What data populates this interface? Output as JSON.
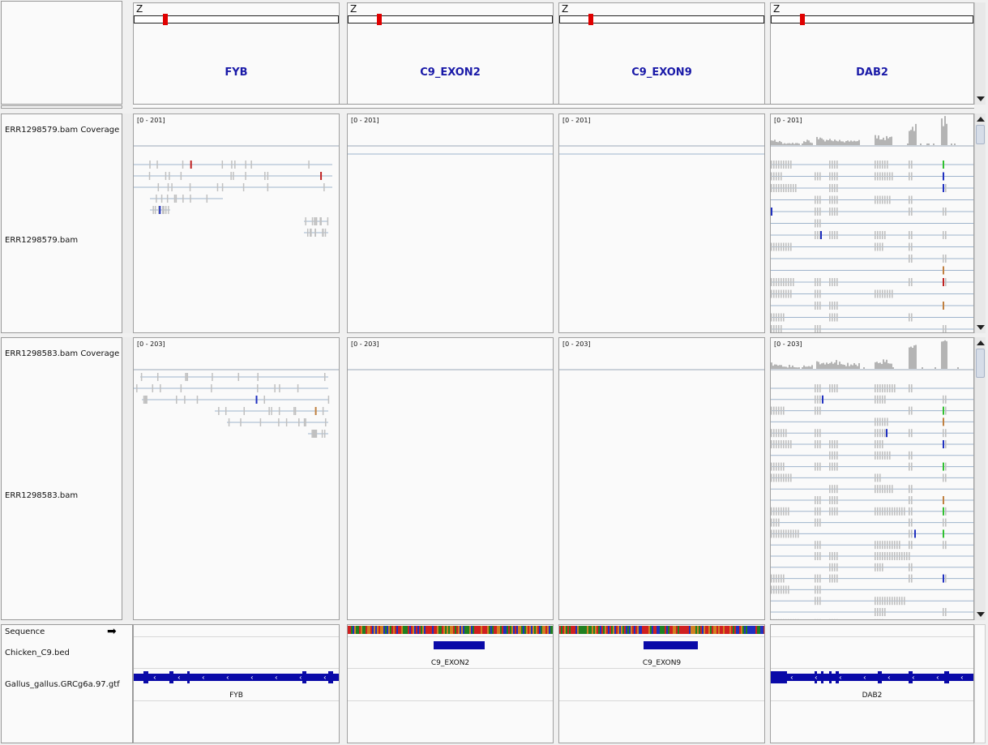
{
  "ideogram": {
    "chrom_letter": "Z"
  },
  "panels": [
    {
      "gene": "FYB",
      "range_1": "[0 - 201]",
      "range_2": "[0 - 203]",
      "bed_feature": "",
      "gtf_feature": "FYB"
    },
    {
      "gene": "C9_EXON2",
      "range_1": "[0 - 201]",
      "range_2": "[0 - 203]",
      "bed_feature": "C9_EXON2",
      "gtf_feature": ""
    },
    {
      "gene": "C9_EXON9",
      "range_1": "[0 - 201]",
      "range_2": "[0 - 203]",
      "bed_feature": "C9_EXON9",
      "gtf_feature": ""
    },
    {
      "gene": "DAB2",
      "range_1": "[0 - 201]",
      "range_2": "[0 - 203]",
      "bed_feature": "",
      "gtf_feature": "DAB2"
    }
  ],
  "tracks": {
    "sample1_coverage": "ERR1298579.bam Coverage",
    "sample1_bam": "ERR1298579.bam",
    "sample2_coverage": "ERR1298583.bam Coverage",
    "sample2_bam": "ERR1298583.bam",
    "sequence": "Sequence",
    "bed": "Chicken_C9.bed",
    "gtf": "Gallus_gallus.GRCg6a.97.gtf"
  },
  "colors": {
    "gene_name": "#1a1aa8",
    "feature_blue": "#0a0aa8",
    "ideogram_marker": "#e00000",
    "coverage": "#b4b4b4",
    "read": "#c0c0c0",
    "splice": "#9fb4cc"
  },
  "icons": {
    "sequence_strand": "arrow-right-icon",
    "scroll_up": "triangle-up-icon",
    "scroll_down": "triangle-down-icon"
  }
}
